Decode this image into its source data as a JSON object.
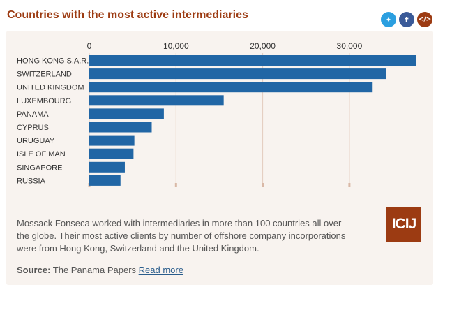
{
  "title": "Countries with the most active intermediaries",
  "share": {
    "twitter_icon": "twitter-icon",
    "facebook_icon": "facebook-icon",
    "embed_icon": "embed-code-icon",
    "twitter_glyph": "🐦",
    "facebook_glyph": "f",
    "embed_glyph": "</>"
  },
  "chart_data": {
    "type": "bar",
    "orientation": "horizontal",
    "categories": [
      "HONG KONG S.A.R.",
      "SWITZERLAND",
      "UNITED KINGDOM",
      "LUXEMBOURG",
      "PANAMA",
      "CYPRUS",
      "URUGUAY",
      "ISLE OF MAN",
      "SINGAPORE",
      "RUSSIA"
    ],
    "values": [
      37700,
      34200,
      32600,
      15500,
      8600,
      7200,
      5200,
      5100,
      4100,
      3600
    ],
    "xticks": [
      0,
      10000,
      20000,
      30000
    ],
    "xtick_labels": [
      "0",
      "10,000",
      "20,000",
      "30,000"
    ],
    "xlim": [
      0,
      40000
    ],
    "bar_color": "#2166a5",
    "grid": true,
    "xlabel": "",
    "ylabel": ""
  },
  "caption": "Mossack Fonseca worked with intermediaries in more than 100 countries all over the globe. Their most active clients by number of offshore company incorporations were from Hong Kong, Switzerland and the United Kingdom.",
  "source": {
    "label": "Source:",
    "text": "The Panama Papers",
    "link": "Read more"
  },
  "logo_text": "ICIJ"
}
